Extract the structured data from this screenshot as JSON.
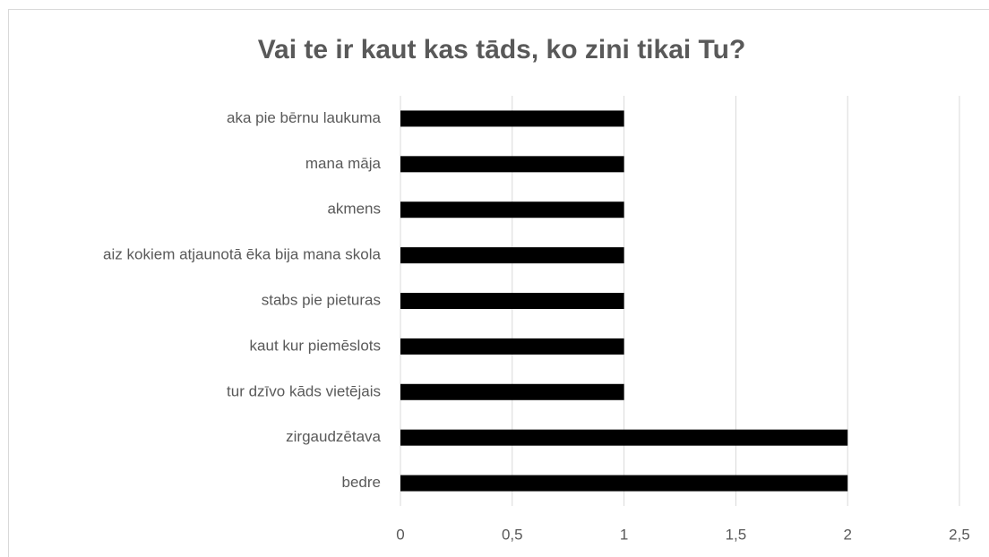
{
  "chart_data": {
    "type": "bar",
    "orientation": "horizontal",
    "title": "Vai te ir kaut kas tāds, ko zini tikai Tu?",
    "categories": [
      "aka pie bērnu laukuma",
      "mana māja",
      "akmens",
      "aiz kokiem atjaunotā ēka bija mana skola",
      "stabs pie pieturas",
      "kaut kur piemēslots",
      "tur dzīvo kāds vietējais",
      "zirgaudzētava",
      "bedre"
    ],
    "values": [
      1,
      1,
      1,
      1,
      1,
      1,
      1,
      2,
      2
    ],
    "color": "#000000",
    "xlim": [
      0,
      2.5
    ],
    "xticks": [
      0,
      {
        "value": 0.5,
        "label": "0,5"
      },
      1,
      {
        "value": 1.5,
        "label": "1,5"
      },
      2,
      {
        "value": 2.5,
        "label": "2,5"
      }
    ],
    "grid": true
  }
}
